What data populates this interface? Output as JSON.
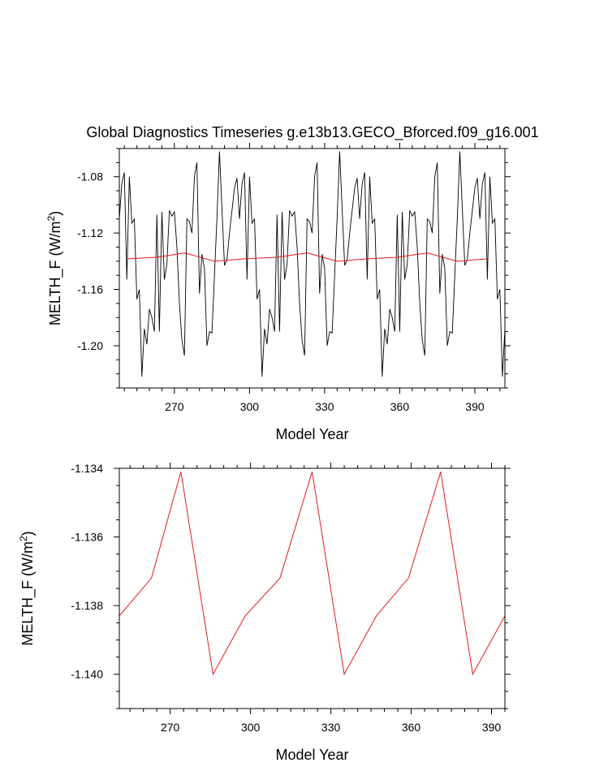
{
  "page": {
    "title": "Global Diagnostics Timeseries g.e13b13.GECO_Bforced.f09_g16.001"
  },
  "chart_data": [
    {
      "type": "line",
      "xlabel": "Model Year",
      "ylabel_main": "MELTH_F (W/m",
      "ylabel_sup": "2",
      "ylabel_close": ")",
      "xlim": [
        248,
        402
      ],
      "ylim": [
        -1.23,
        -1.06
      ],
      "xticks": [
        270,
        300,
        330,
        360,
        390
      ],
      "xtick_labels": [
        "270",
        "300",
        "330",
        "360",
        "390"
      ],
      "yticks": [
        -1.2,
        -1.16,
        -1.12,
        -1.08
      ],
      "ytick_labels": [
        "-1.20",
        "-1.16",
        "-1.12",
        "-1.08"
      ],
      "series": [
        {
          "color": "#000000",
          "x": [
            248,
            249,
            250,
            251,
            252,
            253,
            254,
            255,
            256,
            257,
            258,
            259,
            260,
            261,
            262,
            263,
            264,
            265,
            266,
            267,
            268,
            269,
            270,
            271,
            272,
            273,
            274,
            275,
            276,
            277,
            278,
            279,
            280,
            281,
            282,
            283,
            284,
            285,
            286,
            287,
            288,
            289,
            290,
            291,
            292,
            293,
            294,
            295
          ],
          "y": [
            -1.11,
            -1.085,
            -1.077,
            -1.153,
            -1.08,
            -1.113,
            -1.11,
            -1.167,
            -1.16,
            -1.222,
            -1.188,
            -1.199,
            -1.174,
            -1.18,
            -1.19,
            -1.107,
            -1.19,
            -1.105,
            -1.153,
            -1.142,
            -1.104,
            -1.108,
            -1.105,
            -1.13,
            -1.17,
            -1.196,
            -1.207,
            -1.11,
            -1.112,
            -1.12,
            -1.08,
            -1.07,
            -1.163,
            -1.135,
            -1.145,
            -1.2,
            -1.19,
            -1.191,
            -1.15,
            -1.109,
            -1.062,
            -1.103,
            -1.143,
            -1.139,
            -1.12,
            -1.104,
            -1.088,
            -1.081
          ],
          "repeat_every": 48
        },
        {
          "color": "#e41a1c",
          "x": [
            251,
            263,
            274,
            286,
            298,
            311,
            323,
            335,
            347,
            359,
            371,
            383,
            395
          ],
          "y": [
            -1.1383,
            -1.1372,
            -1.1341,
            -1.14,
            -1.1383,
            -1.1372,
            -1.1341,
            -1.14,
            -1.1383,
            -1.1372,
            -1.1341,
            -1.14,
            -1.1383
          ]
        }
      ]
    },
    {
      "type": "line",
      "xlabel": "Model Year",
      "ylabel_main": "MELTH_F (W/m",
      "ylabel_sup": "2",
      "ylabel_close": ")",
      "xlim": [
        251,
        395
      ],
      "ylim": [
        -1.141,
        -1.134
      ],
      "xticks": [
        270,
        300,
        330,
        360,
        390
      ],
      "xtick_labels": [
        "270",
        "300",
        "330",
        "360",
        "390"
      ],
      "yticks": [
        -1.14,
        -1.138,
        -1.136,
        -1.134
      ],
      "ytick_labels": [
        "-1.140",
        "-1.138",
        "-1.136",
        "-1.134"
      ],
      "series": [
        {
          "color": "#e41a1c",
          "x": [
            251,
            263,
            274,
            286,
            298,
            311,
            323,
            335,
            347,
            359,
            371,
            383,
            395
          ],
          "y": [
            -1.1383,
            -1.1372,
            -1.1341,
            -1.14,
            -1.1383,
            -1.1372,
            -1.1341,
            -1.14,
            -1.1383,
            -1.1372,
            -1.1341,
            -1.14,
            -1.1383
          ]
        }
      ]
    }
  ]
}
